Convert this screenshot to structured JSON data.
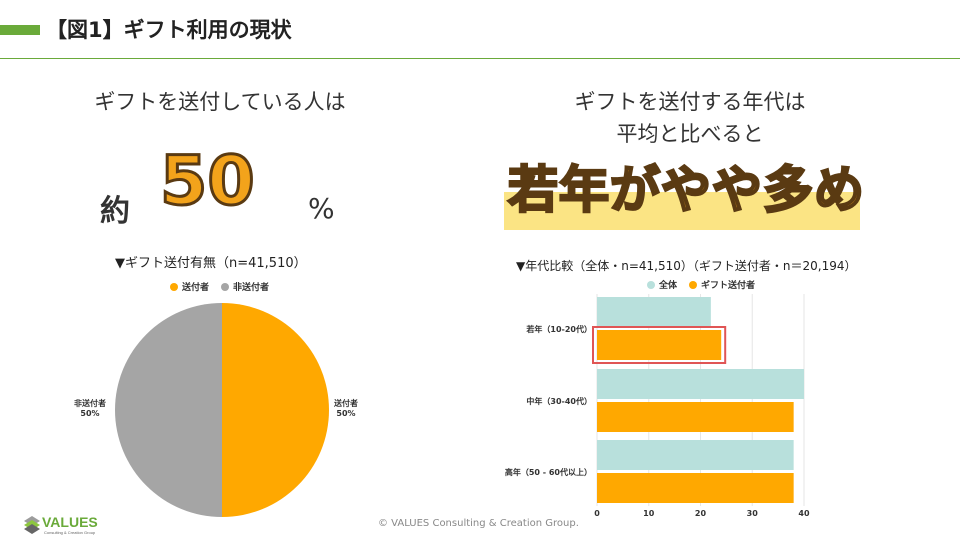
{
  "header": {
    "title": "【図1】ギフト利用の現状"
  },
  "left": {
    "subtitle": "ギフトを送付している人は",
    "prefix": "約",
    "value": "50",
    "suffix": "%",
    "chart_title": "▼ギフト送付有無（n=41,510）"
  },
  "right": {
    "subtitle_1": "ギフトを送付する年代は",
    "subtitle_2": "平均と比べると",
    "headline": "若年がやや多め",
    "chart_title": "▼年代比較（全体・n=41,510）（ギフト送付者・n＝20,194）"
  },
  "chart_data": [
    {
      "type": "pie",
      "legend_position": "top",
      "slices": [
        {
          "name": "送付者",
          "value": 50,
          "label": "送付者",
          "pct_label": "50%",
          "color": "#ffa800"
        },
        {
          "name": "非送付者",
          "value": 50,
          "label": "非送付者",
          "pct_label": "50%",
          "color": "#a5a5a5"
        }
      ]
    },
    {
      "type": "bar",
      "orientation": "horizontal",
      "legend_position": "top",
      "grid": true,
      "categories": [
        "若年（10-20代）",
        "中年（30-40代）",
        "高年（50 - 60代以上）"
      ],
      "series": [
        {
          "name": "全体",
          "values": [
            22,
            40,
            38
          ],
          "color": "#b8e0dc"
        },
        {
          "name": "ギフト送付者",
          "values": [
            24,
            38,
            38
          ],
          "color": "#ffa800"
        }
      ],
      "xlim": [
        0,
        40
      ],
      "xticks": [
        "0",
        "10",
        "20",
        "30",
        "40"
      ],
      "highlight": {
        "category": "若年（10-20代）",
        "series": "ギフト送付者",
        "color": "#e05555"
      }
    }
  ],
  "footer": {
    "copyright": "© VALUES Consulting & Creation Group.",
    "logo_text": "VALUES",
    "logo_sub": "Consulting & Creation Group"
  }
}
